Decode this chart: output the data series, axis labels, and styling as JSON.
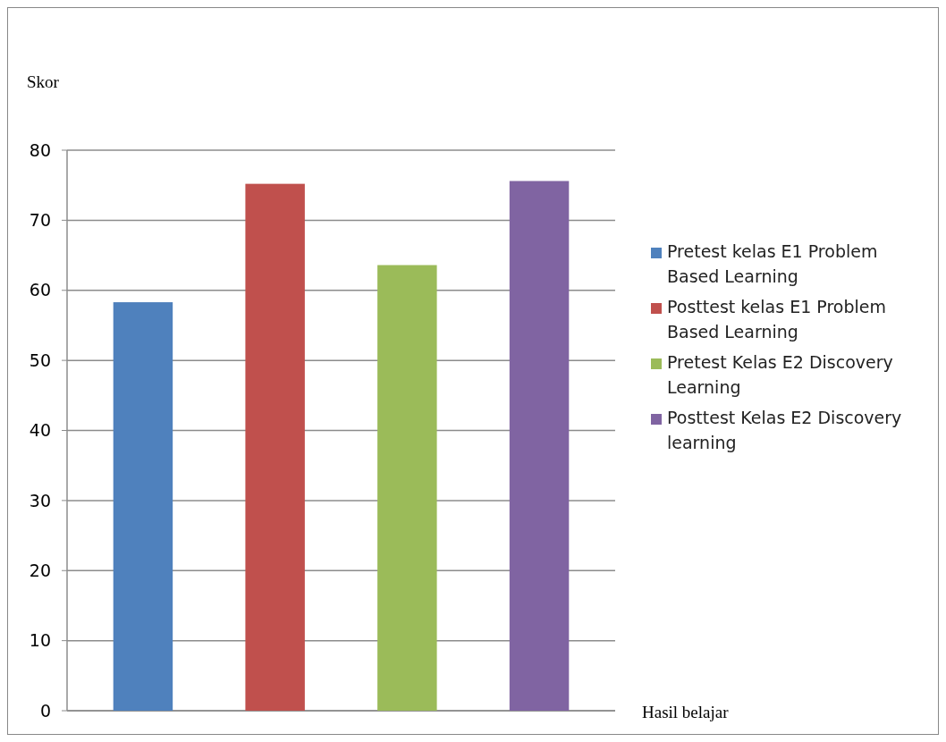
{
  "chart_data": {
    "type": "bar",
    "ylabel": "Skor",
    "xlabel": "Hasil belajar",
    "categories": [
      null
    ],
    "series": [
      {
        "name": "Pretest kelas E1 Problem Based Learning",
        "color": "#4f81bd",
        "values": [
          58.3
        ]
      },
      {
        "name": "Posttest kelas E1 Problem Based Learning",
        "color": "#c0504d",
        "values": [
          75.2
        ]
      },
      {
        "name": "Pretest Kelas E2 Discovery Learning",
        "color": "#9bbb59",
        "values": [
          63.6
        ]
      },
      {
        "name": "Posttest Kelas E2 Discovery learning",
        "color": "#8064a2",
        "values": [
          75.6
        ]
      }
    ],
    "ylim": [
      0,
      80
    ],
    "yticks": [
      0,
      10,
      20,
      30,
      40,
      50,
      60,
      70,
      80
    ],
    "grid": "y",
    "legend": "right"
  }
}
